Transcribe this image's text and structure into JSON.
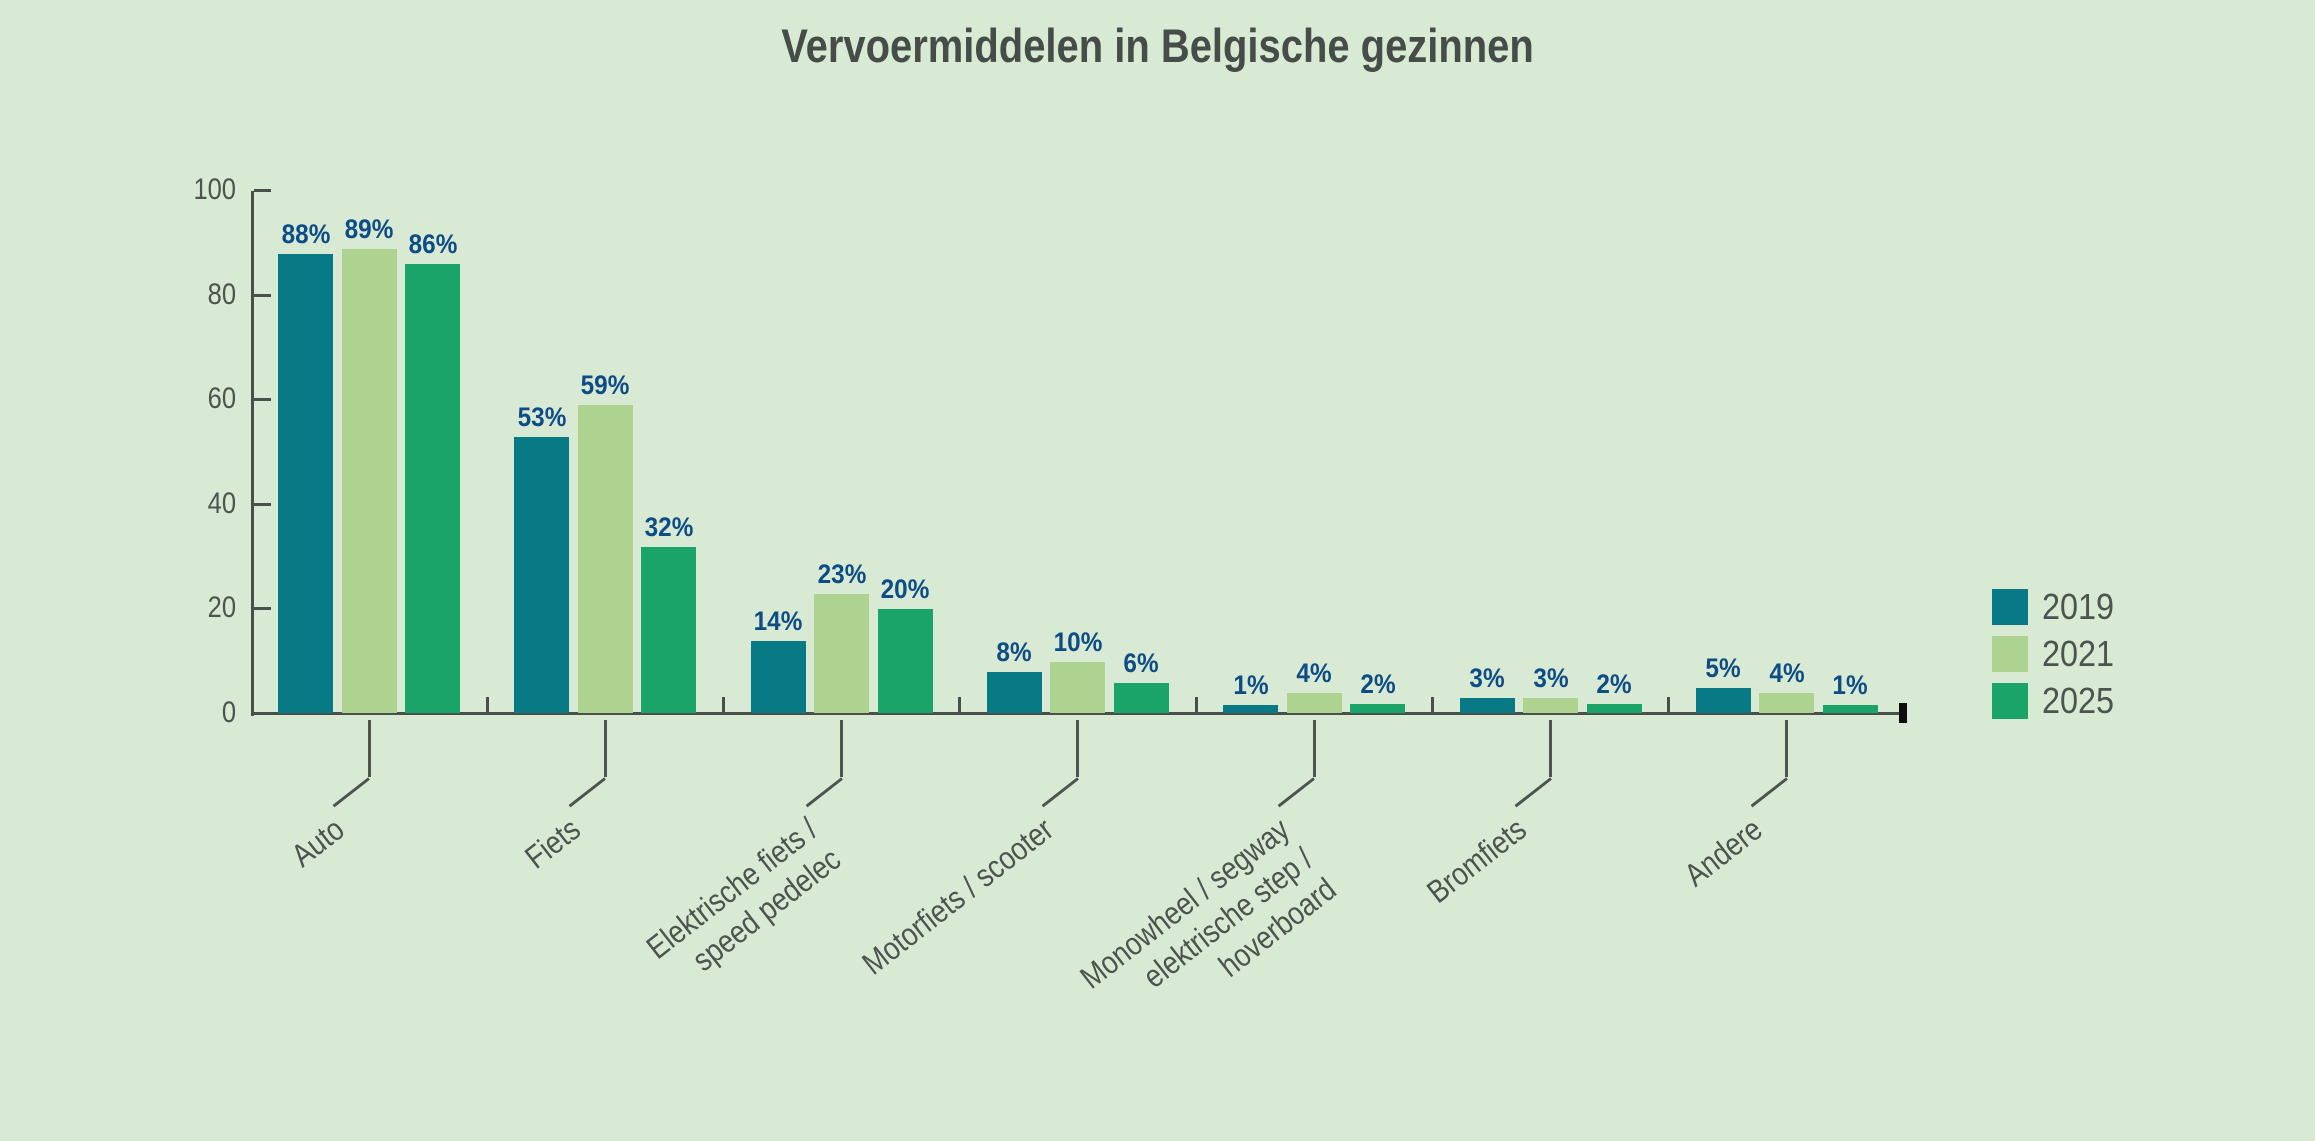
{
  "title": "Vervoermiddelen in Belgische gezinnen",
  "legend": [
    {
      "label": "2019",
      "color": "#077a86"
    },
    {
      "label": "2021",
      "color": "#aed390"
    },
    {
      "label": "2025",
      "color": "#1aa46a"
    }
  ],
  "chart_data": {
    "type": "bar",
    "title": "Vervoermiddelen in Belgische gezinnen",
    "categories": [
      "Auto",
      "Fiets",
      "Elektrische fiets / speed pedelec",
      "Motorfiets / scooter",
      "Monowheel / segway / elektrische step / hoverboard",
      "Bromfiets",
      "Andere"
    ],
    "category_label_lines": [
      [
        "Auto"
      ],
      [
        "Fiets"
      ],
      [
        "Elektrische fiets /",
        "speed pedelec"
      ],
      [
        "Motorfiets / scooter"
      ],
      [
        "Monowheel / segway",
        "elektrische step /",
        "hoverboard"
      ],
      [
        "Bromfiets"
      ],
      [
        "Andere"
      ]
    ],
    "series": [
      {
        "name": "2019",
        "color": "#077a86",
        "values": [
          88,
          53,
          14,
          8,
          1,
          3,
          5
        ]
      },
      {
        "name": "2021",
        "color": "#aed390",
        "values": [
          89,
          59,
          23,
          10,
          4,
          3,
          4
        ]
      },
      {
        "name": "2025",
        "color": "#1aa46a",
        "values": [
          86,
          32,
          20,
          6,
          2,
          2,
          1
        ]
      }
    ],
    "value_suffix": "%",
    "value_labels": [
      [
        "88%",
        "89%",
        "86%"
      ],
      [
        "53%",
        "59%",
        "32%"
      ],
      [
        "14%",
        "23%",
        "20%"
      ],
      [
        "8%",
        "10%",
        "6%"
      ],
      [
        "1%",
        "4%",
        "2%"
      ],
      [
        "3%",
        "3%",
        "2%"
      ],
      [
        "5%",
        "4%",
        "1%"
      ]
    ],
    "xlabel": "",
    "ylabel": "",
    "y_axis": {
      "ticks": [
        0,
        20,
        40,
        60,
        80,
        100
      ],
      "min": 0,
      "max": 100
    },
    "grid": false,
    "legend_position": "right",
    "background_color": "#d8ead4",
    "value_label_color": "#0e4c86",
    "axis_color": "#494f4a",
    "text_color": "#4d534e"
  }
}
